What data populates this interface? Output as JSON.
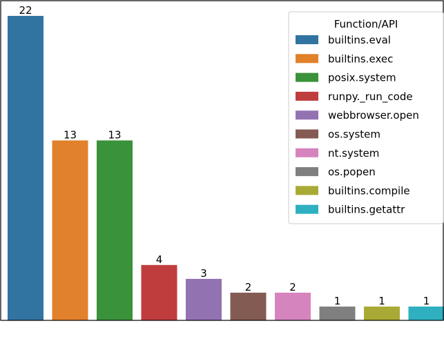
{
  "chart_data": {
    "type": "bar",
    "categories": [
      "builtins.eval",
      "builtins.exec",
      "posix.system",
      "runpy._run_code",
      "webbrowser.open",
      "os.system",
      "nt.system",
      "os.popen",
      "builtins.compile",
      "builtins.getattr"
    ],
    "values": [
      22,
      13,
      13,
      4,
      3,
      2,
      2,
      1,
      1,
      1
    ],
    "value_labels": [
      "22",
      "13",
      "13",
      "4",
      "3",
      "2",
      "2",
      "1",
      "1",
      "1"
    ],
    "colors": [
      "#3274a1",
      "#e1812c",
      "#3a923a",
      "#c03d3e",
      "#9372b2",
      "#845b53",
      "#d684bd",
      "#7f7f7f",
      "#a9aa35",
      "#2eb0c1"
    ],
    "ylim": [
      0,
      23.1
    ],
    "title": "",
    "xlabel": "",
    "ylabel": "",
    "legend": {
      "title": "Function/API",
      "position": "top-right",
      "entries": [
        "builtins.eval",
        "builtins.exec",
        "posix.system",
        "runpy._run_code",
        "webbrowser.open",
        "os.system",
        "nt.system",
        "os.popen",
        "builtins.compile",
        "builtins.getattr"
      ]
    }
  }
}
